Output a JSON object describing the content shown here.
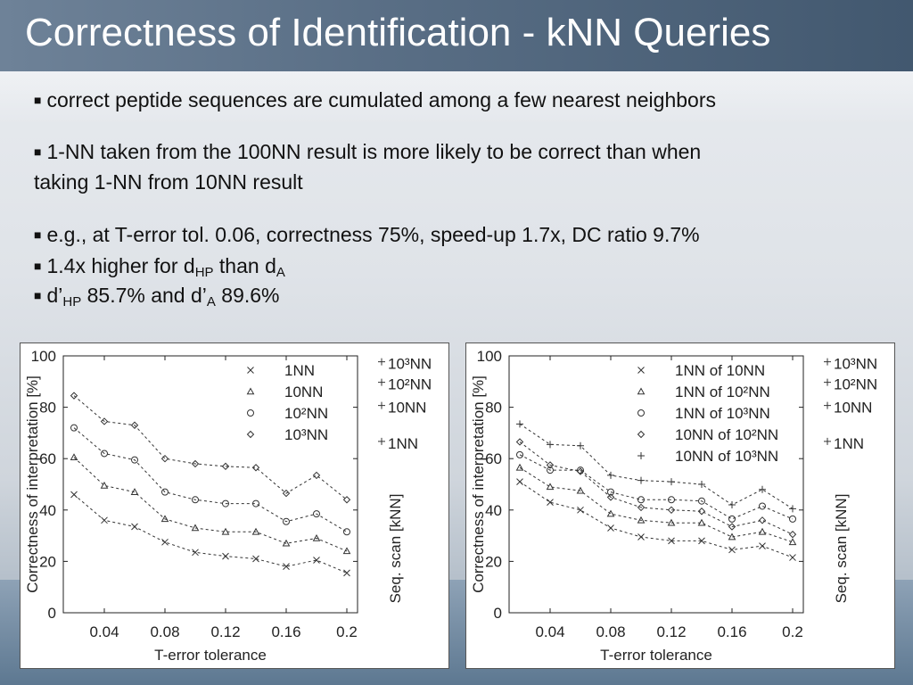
{
  "title": "Correctness of Identification - kNN Queries",
  "bullets": {
    "b1": "correct peptide sequences are cumulated among a few nearest neighbors",
    "b2_line1": "1-NN taken from the 100NN result is more likely to be correct than when",
    "b2_line2": "taking 1-NN from 10NN result",
    "b3": "e.g., at T-error tol. 0.06, correctness 75%, speed-up 1.7x, DC ratio 9.7%",
    "b4_pre": "1.4x higher for d",
    "b4_sub1": "HP",
    "b4_mid": " than d",
    "b4_sub2": "A",
    "b5_pre": "d’",
    "b5_sub1": "HP",
    "b5_mid": " 85.7%  and  d’",
    "b5_sub2": "A",
    "b5_post": " 89.6%"
  },
  "colors": {
    "title_bar": "#5a6f86",
    "title_text": "#ffffff",
    "plot_line": "#333333"
  },
  "chart_data": [
    {
      "type": "line",
      "xlabel": "T-error tolerance",
      "ylabel": "Correctness of interpretation [%]",
      "right_axis_label": "Seq. scan [kNN]",
      "xlim": [
        0.02,
        0.2
      ],
      "ylim": [
        0,
        100
      ],
      "xticks": [
        "0.04",
        "0.08",
        "0.12",
        "0.16",
        "0.2"
      ],
      "yticks": [
        "0",
        "20",
        "40",
        "60",
        "80",
        "100"
      ],
      "x": [
        0.02,
        0.04,
        0.06,
        0.08,
        0.1,
        0.12,
        0.14,
        0.16,
        0.18,
        0.2
      ],
      "series": [
        {
          "name": "1NN",
          "marker": "cross",
          "values": [
            46,
            36,
            33.5,
            27.5,
            23.5,
            22,
            21,
            18,
            20.5,
            15.5
          ]
        },
        {
          "name": "10NN",
          "marker": "triangle",
          "values": [
            60.5,
            49.5,
            47,
            36.5,
            33,
            31.5,
            31.5,
            27,
            29,
            24
          ]
        },
        {
          "name": "10²NN",
          "marker": "circle",
          "values": [
            72,
            62,
            59.5,
            47,
            44,
            42.5,
            42.5,
            35.5,
            38.5,
            31.5
          ]
        },
        {
          "name": "10³NN",
          "marker": "diamond",
          "values": [
            84.5,
            74.5,
            73,
            60,
            58,
            57,
            56.5,
            46.5,
            53.5,
            44
          ]
        }
      ],
      "seq_scan_labels": [
        {
          "name": "10³NN",
          "value": 97
        },
        {
          "name": "10²NN",
          "value": 89
        },
        {
          "name": "10NN",
          "value": 80
        },
        {
          "name": "1NN",
          "value": 66
        }
      ]
    },
    {
      "type": "line",
      "xlabel": "T-error tolerance",
      "ylabel": "Correctness of interpretation [%]",
      "right_axis_label": "Seq. scan [kNN]",
      "xlim": [
        0.02,
        0.2
      ],
      "ylim": [
        0,
        100
      ],
      "xticks": [
        "0.04",
        "0.08",
        "0.12",
        "0.16",
        "0.2"
      ],
      "yticks": [
        "0",
        "20",
        "40",
        "60",
        "80",
        "100"
      ],
      "x": [
        0.02,
        0.04,
        0.06,
        0.08,
        0.1,
        0.12,
        0.14,
        0.16,
        0.18,
        0.2
      ],
      "series": [
        {
          "name": "1NN of 10NN",
          "marker": "cross",
          "values": [
            51,
            43,
            40,
            33,
            29.5,
            28,
            28,
            24.5,
            26,
            21.5
          ]
        },
        {
          "name": "1NN of 10²NN",
          "marker": "triangle",
          "values": [
            56.5,
            49,
            47.5,
            38.5,
            36,
            35,
            35,
            29.5,
            31.5,
            27.5
          ]
        },
        {
          "name": "1NN of 10³NN",
          "marker": "circle",
          "values": [
            61.5,
            55.5,
            55.5,
            47,
            44,
            44,
            43.5,
            36.5,
            41.5,
            36.5
          ]
        },
        {
          "name": "10NN of 10²NN",
          "marker": "diamond",
          "values": [
            66.5,
            57.5,
            55,
            45,
            41,
            40,
            39.5,
            33.5,
            36,
            30.5
          ]
        },
        {
          "name": "10NN of 10³NN",
          "marker": "plus",
          "values": [
            73.5,
            65.5,
            65,
            53.5,
            51.5,
            51,
            50,
            42,
            48,
            40.5
          ]
        }
      ],
      "seq_scan_labels": [
        {
          "name": "10³NN",
          "value": 97
        },
        {
          "name": "10²NN",
          "value": 89
        },
        {
          "name": "10NN",
          "value": 80
        },
        {
          "name": "1NN",
          "value": 66
        }
      ]
    }
  ]
}
